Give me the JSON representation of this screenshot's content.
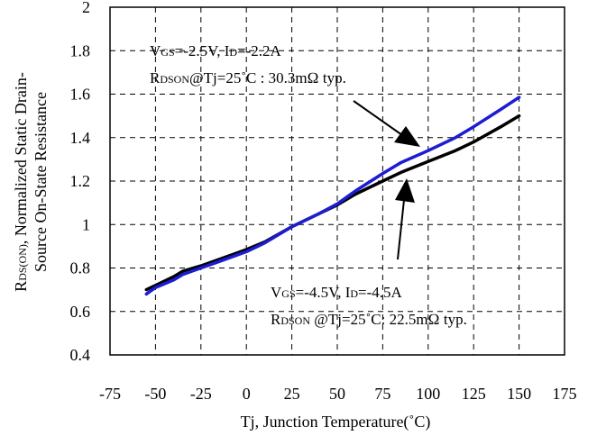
{
  "chart_data": {
    "type": "line",
    "xlabel": "Tj, Junction Temperature(˚C)",
    "ylabel_line1": "RDS(ON), Normalized Static Drain-",
    "ylabel_line2": "Source On-State Resistance",
    "xlim": [
      -75,
      175
    ],
    "ylim": [
      0.4,
      2
    ],
    "xticks": [
      "-75",
      "-50",
      "-25",
      "0",
      "25",
      "50",
      "75",
      "100",
      "125",
      "150",
      "175"
    ],
    "yticks": [
      "0.4",
      "0.6",
      "0.8",
      "1",
      "1.2",
      "1.4",
      "1.6",
      "1.8",
      "2"
    ],
    "grid": true,
    "series": [
      {
        "color": "#000000",
        "x": [
          -55,
          -50,
          -40,
          -35,
          -25,
          -15,
          0,
          10,
          25,
          40,
          50,
          60,
          75,
          85,
          100,
          115,
          125,
          140,
          150
        ],
        "y": [
          0.7,
          0.72,
          0.76,
          0.785,
          0.81,
          0.84,
          0.885,
          0.92,
          0.99,
          1.05,
          1.09,
          1.14,
          1.2,
          1.24,
          1.29,
          1.34,
          1.38,
          1.45,
          1.5
        ]
      },
      {
        "color": "#1c1cd4",
        "x": [
          -55,
          -50,
          -40,
          -35,
          -25,
          -15,
          0,
          10,
          25,
          40,
          50,
          60,
          75,
          85,
          100,
          115,
          125,
          140,
          150
        ],
        "y": [
          0.68,
          0.71,
          0.745,
          0.77,
          0.8,
          0.83,
          0.875,
          0.915,
          0.99,
          1.05,
          1.095,
          1.155,
          1.235,
          1.285,
          1.34,
          1.4,
          1.45,
          1.53,
          1.585
        ]
      }
    ],
    "annotations": {
      "blue_a": {
        "v": "V",
        "vs": "GS",
        "t1": "=-2.5V, I",
        "is": "D",
        "t2": "=-2.2A"
      },
      "blue_b": {
        "r": "R",
        "rs": "DSON",
        "t": "@Tj=25˚C : 30.3mΩ typ."
      },
      "black_a": {
        "v": "V",
        "vs": "GS",
        "t1": "=-4.5V, I",
        "is": "D",
        "t2": "=-4.5A"
      },
      "black_b": {
        "r": "R",
        "rs": "DSON",
        "t": " @Tj=25˚C: 22.5mΩ typ."
      }
    }
  }
}
